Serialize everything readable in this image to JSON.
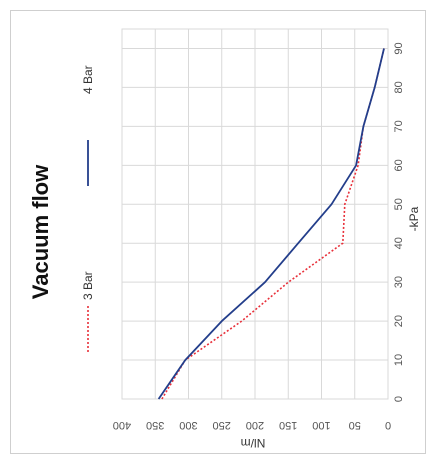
{
  "chart_data": {
    "type": "line",
    "title": "Vacuum flow",
    "xlabel": "-kPa",
    "ylabel": "Nl/m",
    "xlim": [
      0,
      95
    ],
    "ylim": [
      0,
      400
    ],
    "x_ticks": [
      0,
      10,
      20,
      30,
      40,
      50,
      60,
      70,
      80,
      90
    ],
    "y_ticks": [
      0,
      50,
      100,
      150,
      200,
      250,
      300,
      350,
      400
    ],
    "grid": true,
    "legend_position": "left",
    "orientation": "rotated-90-clockwise",
    "series": [
      {
        "name": "3 Bar",
        "style": "dotted",
        "color": "#e8303a",
        "x": [
          0,
          10,
          20,
          30,
          40,
          50,
          60,
          70,
          80,
          90
        ],
        "y": [
          340,
          305,
          220,
          150,
          68,
          65,
          45,
          37,
          20,
          6
        ]
      },
      {
        "name": "4 Bar",
        "style": "solid",
        "color": "#233e8b",
        "x": [
          0,
          10,
          20,
          30,
          40,
          50,
          60,
          70,
          80,
          90
        ],
        "y": [
          345,
          305,
          250,
          185,
          135,
          85,
          48,
          37,
          20,
          6
        ]
      }
    ]
  }
}
